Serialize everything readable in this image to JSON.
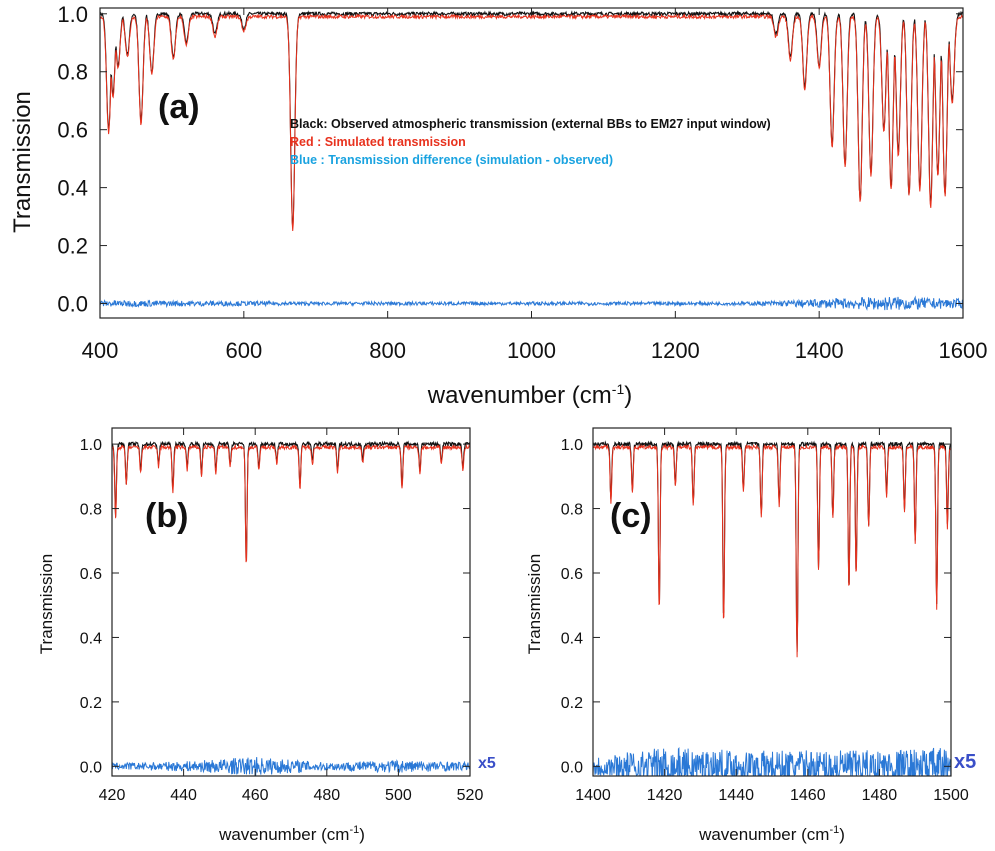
{
  "colors": {
    "observed": "#111111",
    "simulated": "#e8321e",
    "difference": "#2a78d6",
    "multiplier": "#3a4fc8",
    "legend_black": "#111111",
    "legend_red": "#e8321e",
    "legend_blue": "#1aa3e0"
  },
  "chart_data": [
    {
      "id": "a",
      "type": "line",
      "panel_label": "(a)",
      "xlabel": "wavenumber (cm",
      "xlabel_sup": "-1",
      "xlabel_end": ")",
      "ylabel": "Transmission",
      "xlim": [
        400,
        1600
      ],
      "ylim": [
        -0.05,
        1.02
      ],
      "xticks": [
        400,
        600,
        800,
        1000,
        1200,
        1400,
        1600
      ],
      "xtick_labels": [
        "400",
        "600",
        "800",
        "1000",
        "1200",
        "1400",
        "1600"
      ],
      "yticks": [
        0.0,
        0.2,
        0.4,
        0.6,
        0.8,
        1.0
      ],
      "ytick_labels": [
        "0.0",
        "0.2",
        "0.4",
        "0.6",
        "0.8",
        "1.0"
      ],
      "legend": [
        "Black: Observed atmospheric transmission (external BBs to EM27 input window)",
        "Red   : Simulated transmission",
        "Blue  : Transmission difference (simulation - observed)"
      ],
      "series": [
        {
          "color": "observed",
          "baseline": 1.0,
          "absorption_lines": [
            [
              412,
              0.6
            ],
            [
              418,
              0.72
            ],
            [
              425,
              0.82
            ],
            [
              438,
              0.86
            ],
            [
              457,
              0.63
            ],
            [
              472,
              0.8
            ],
            [
              502,
              0.85
            ],
            [
              520,
              0.9
            ],
            [
              560,
              0.93
            ],
            [
              600,
              0.95
            ],
            [
              668,
              0.26
            ],
            [
              1340,
              0.93
            ],
            [
              1360,
              0.85
            ],
            [
              1380,
              0.75
            ],
            [
              1400,
              0.82
            ],
            [
              1418,
              0.55
            ],
            [
              1436,
              0.48
            ],
            [
              1457,
              0.36
            ],
            [
              1472,
              0.45
            ],
            [
              1490,
              0.6
            ],
            [
              1500,
              0.4
            ],
            [
              1510,
              0.52
            ],
            [
              1525,
              0.38
            ],
            [
              1540,
              0.4
            ],
            [
              1555,
              0.34
            ],
            [
              1565,
              0.45
            ],
            [
              1575,
              0.38
            ],
            [
              1585,
              0.7
            ]
          ]
        },
        {
          "color": "simulated",
          "baseline": 0.99,
          "absorption_lines": [
            [
              412,
              0.6
            ],
            [
              418,
              0.72
            ],
            [
              425,
              0.82
            ],
            [
              438,
              0.86
            ],
            [
              457,
              0.63
            ],
            [
              472,
              0.8
            ],
            [
              502,
              0.85
            ],
            [
              520,
              0.9
            ],
            [
              560,
              0.93
            ],
            [
              600,
              0.95
            ],
            [
              668,
              0.26
            ],
            [
              1340,
              0.93
            ],
            [
              1360,
              0.85
            ],
            [
              1380,
              0.75
            ],
            [
              1400,
              0.82
            ],
            [
              1418,
              0.55
            ],
            [
              1436,
              0.48
            ],
            [
              1457,
              0.36
            ],
            [
              1472,
              0.45
            ],
            [
              1490,
              0.6
            ],
            [
              1500,
              0.4
            ],
            [
              1510,
              0.52
            ],
            [
              1525,
              0.38
            ],
            [
              1540,
              0.4
            ],
            [
              1555,
              0.34
            ],
            [
              1565,
              0.45
            ],
            [
              1575,
              0.38
            ],
            [
              1585,
              0.7
            ]
          ]
        },
        {
          "color": "difference",
          "baseline": 0.0,
          "noise": [
            [
              400,
              0.012
            ],
            [
              700,
              0.006
            ],
            [
              1300,
              0.006
            ],
            [
              1400,
              0.015
            ],
            [
              1500,
              0.025
            ],
            [
              1600,
              0.015
            ]
          ]
        }
      ]
    },
    {
      "id": "b",
      "type": "line",
      "panel_label": "(b)",
      "xlabel": "wavenumber (cm",
      "xlabel_sup": "-1",
      "xlabel_end": ")",
      "ylabel": "Transmission",
      "multiplier_label": "x5",
      "xlim": [
        420,
        520
      ],
      "ylim": [
        -0.03,
        1.05
      ],
      "xticks": [
        420,
        440,
        460,
        480,
        500,
        520
      ],
      "xtick_labels": [
        "420",
        "440",
        "460",
        "480",
        "500",
        "520"
      ],
      "yticks": [
        0.0,
        0.2,
        0.4,
        0.6,
        0.8,
        1.0
      ],
      "ytick_labels": [
        "0.0",
        "0.2",
        "0.4",
        "0.6",
        "0.8",
        "1.0"
      ],
      "series": [
        {
          "color": "observed",
          "baseline": 1.0,
          "absorption_lines": [
            [
              421,
              0.78
            ],
            [
              424,
              0.88
            ],
            [
              428,
              0.92
            ],
            [
              433,
              0.94
            ],
            [
              437,
              0.86
            ],
            [
              441,
              0.93
            ],
            [
              445,
              0.91
            ],
            [
              449,
              0.92
            ],
            [
              453,
              0.94
            ],
            [
              457.5,
              0.63
            ],
            [
              461,
              0.93
            ],
            [
              466,
              0.95
            ],
            [
              472.5,
              0.87
            ],
            [
              476,
              0.95
            ],
            [
              483,
              0.92
            ],
            [
              490,
              0.95
            ],
            [
              501,
              0.87
            ],
            [
              506,
              0.92
            ],
            [
              512,
              0.95
            ],
            [
              518,
              0.93
            ]
          ]
        },
        {
          "color": "simulated",
          "baseline": 0.99,
          "absorption_lines": [
            [
              421,
              0.78
            ],
            [
              424,
              0.88
            ],
            [
              428,
              0.92
            ],
            [
              433,
              0.94
            ],
            [
              437,
              0.86
            ],
            [
              441,
              0.93
            ],
            [
              445,
              0.91
            ],
            [
              449,
              0.92
            ],
            [
              453,
              0.94
            ],
            [
              457.5,
              0.63
            ],
            [
              461,
              0.93
            ],
            [
              466,
              0.95
            ],
            [
              472.5,
              0.87
            ],
            [
              476,
              0.95
            ],
            [
              483,
              0.92
            ],
            [
              490,
              0.95
            ],
            [
              501,
              0.87
            ],
            [
              506,
              0.92
            ],
            [
              512,
              0.95
            ],
            [
              518,
              0.93
            ]
          ]
        },
        {
          "color": "difference",
          "baseline": 0.0,
          "noise": [
            [
              420,
              0.01
            ],
            [
              440,
              0.015
            ],
            [
              460,
              0.03
            ],
            [
              480,
              0.012
            ],
            [
              500,
              0.02
            ],
            [
              520,
              0.012
            ]
          ]
        }
      ]
    },
    {
      "id": "c",
      "type": "line",
      "panel_label": "(c)",
      "xlabel": "wavenumber (cm",
      "xlabel_sup": "-1",
      "xlabel_end": ")",
      "ylabel": "Transmission",
      "multiplier_label": "x5",
      "xlim": [
        1400,
        1500
      ],
      "ylim": [
        -0.03,
        1.05
      ],
      "xticks": [
        1400,
        1420,
        1440,
        1460,
        1480,
        1500
      ],
      "xtick_labels": [
        "1400",
        "1420",
        "1440",
        "1460",
        "1480",
        "1500"
      ],
      "yticks": [
        0.0,
        0.2,
        0.4,
        0.6,
        0.8,
        1.0
      ],
      "ytick_labels": [
        "0.0",
        "0.2",
        "0.4",
        "0.6",
        "0.8",
        "1.0"
      ],
      "series": [
        {
          "color": "observed",
          "baseline": 1.0,
          "absorption_lines": [
            [
              1405,
              0.83
            ],
            [
              1411,
              0.86
            ],
            [
              1418.5,
              0.49
            ],
            [
              1423,
              0.88
            ],
            [
              1428,
              0.82
            ],
            [
              1436.5,
              0.45
            ],
            [
              1442,
              0.86
            ],
            [
              1447,
              0.78
            ],
            [
              1452,
              0.82
            ],
            [
              1457,
              0.35
            ],
            [
              1463,
              0.62
            ],
            [
              1467,
              0.78
            ],
            [
              1471.5,
              0.55
            ],
            [
              1473.5,
              0.6
            ],
            [
              1477,
              0.75
            ],
            [
              1482,
              0.85
            ],
            [
              1487,
              0.8
            ],
            [
              1490,
              0.7
            ],
            [
              1496,
              0.5
            ],
            [
              1499,
              0.75
            ]
          ]
        },
        {
          "color": "simulated",
          "baseline": 0.99,
          "absorption_lines": [
            [
              1405,
              0.83
            ],
            [
              1411,
              0.86
            ],
            [
              1418.5,
              0.49
            ],
            [
              1423,
              0.88
            ],
            [
              1428,
              0.82
            ],
            [
              1436.5,
              0.45
            ],
            [
              1442,
              0.86
            ],
            [
              1447,
              0.78
            ],
            [
              1452,
              0.82
            ],
            [
              1457,
              0.35
            ],
            [
              1463,
              0.62
            ],
            [
              1467,
              0.78
            ],
            [
              1471.5,
              0.55
            ],
            [
              1473.5,
              0.6
            ],
            [
              1477,
              0.75
            ],
            [
              1482,
              0.85
            ],
            [
              1487,
              0.8
            ],
            [
              1490,
              0.7
            ],
            [
              1496,
              0.5
            ],
            [
              1499,
              0.75
            ]
          ]
        },
        {
          "color": "difference",
          "baseline": 0.0,
          "noise": [
            [
              1400,
              0.03
            ],
            [
              1420,
              0.06
            ],
            [
              1440,
              0.05
            ],
            [
              1460,
              0.05
            ],
            [
              1480,
              0.05
            ],
            [
              1500,
              0.06
            ]
          ]
        }
      ]
    }
  ]
}
